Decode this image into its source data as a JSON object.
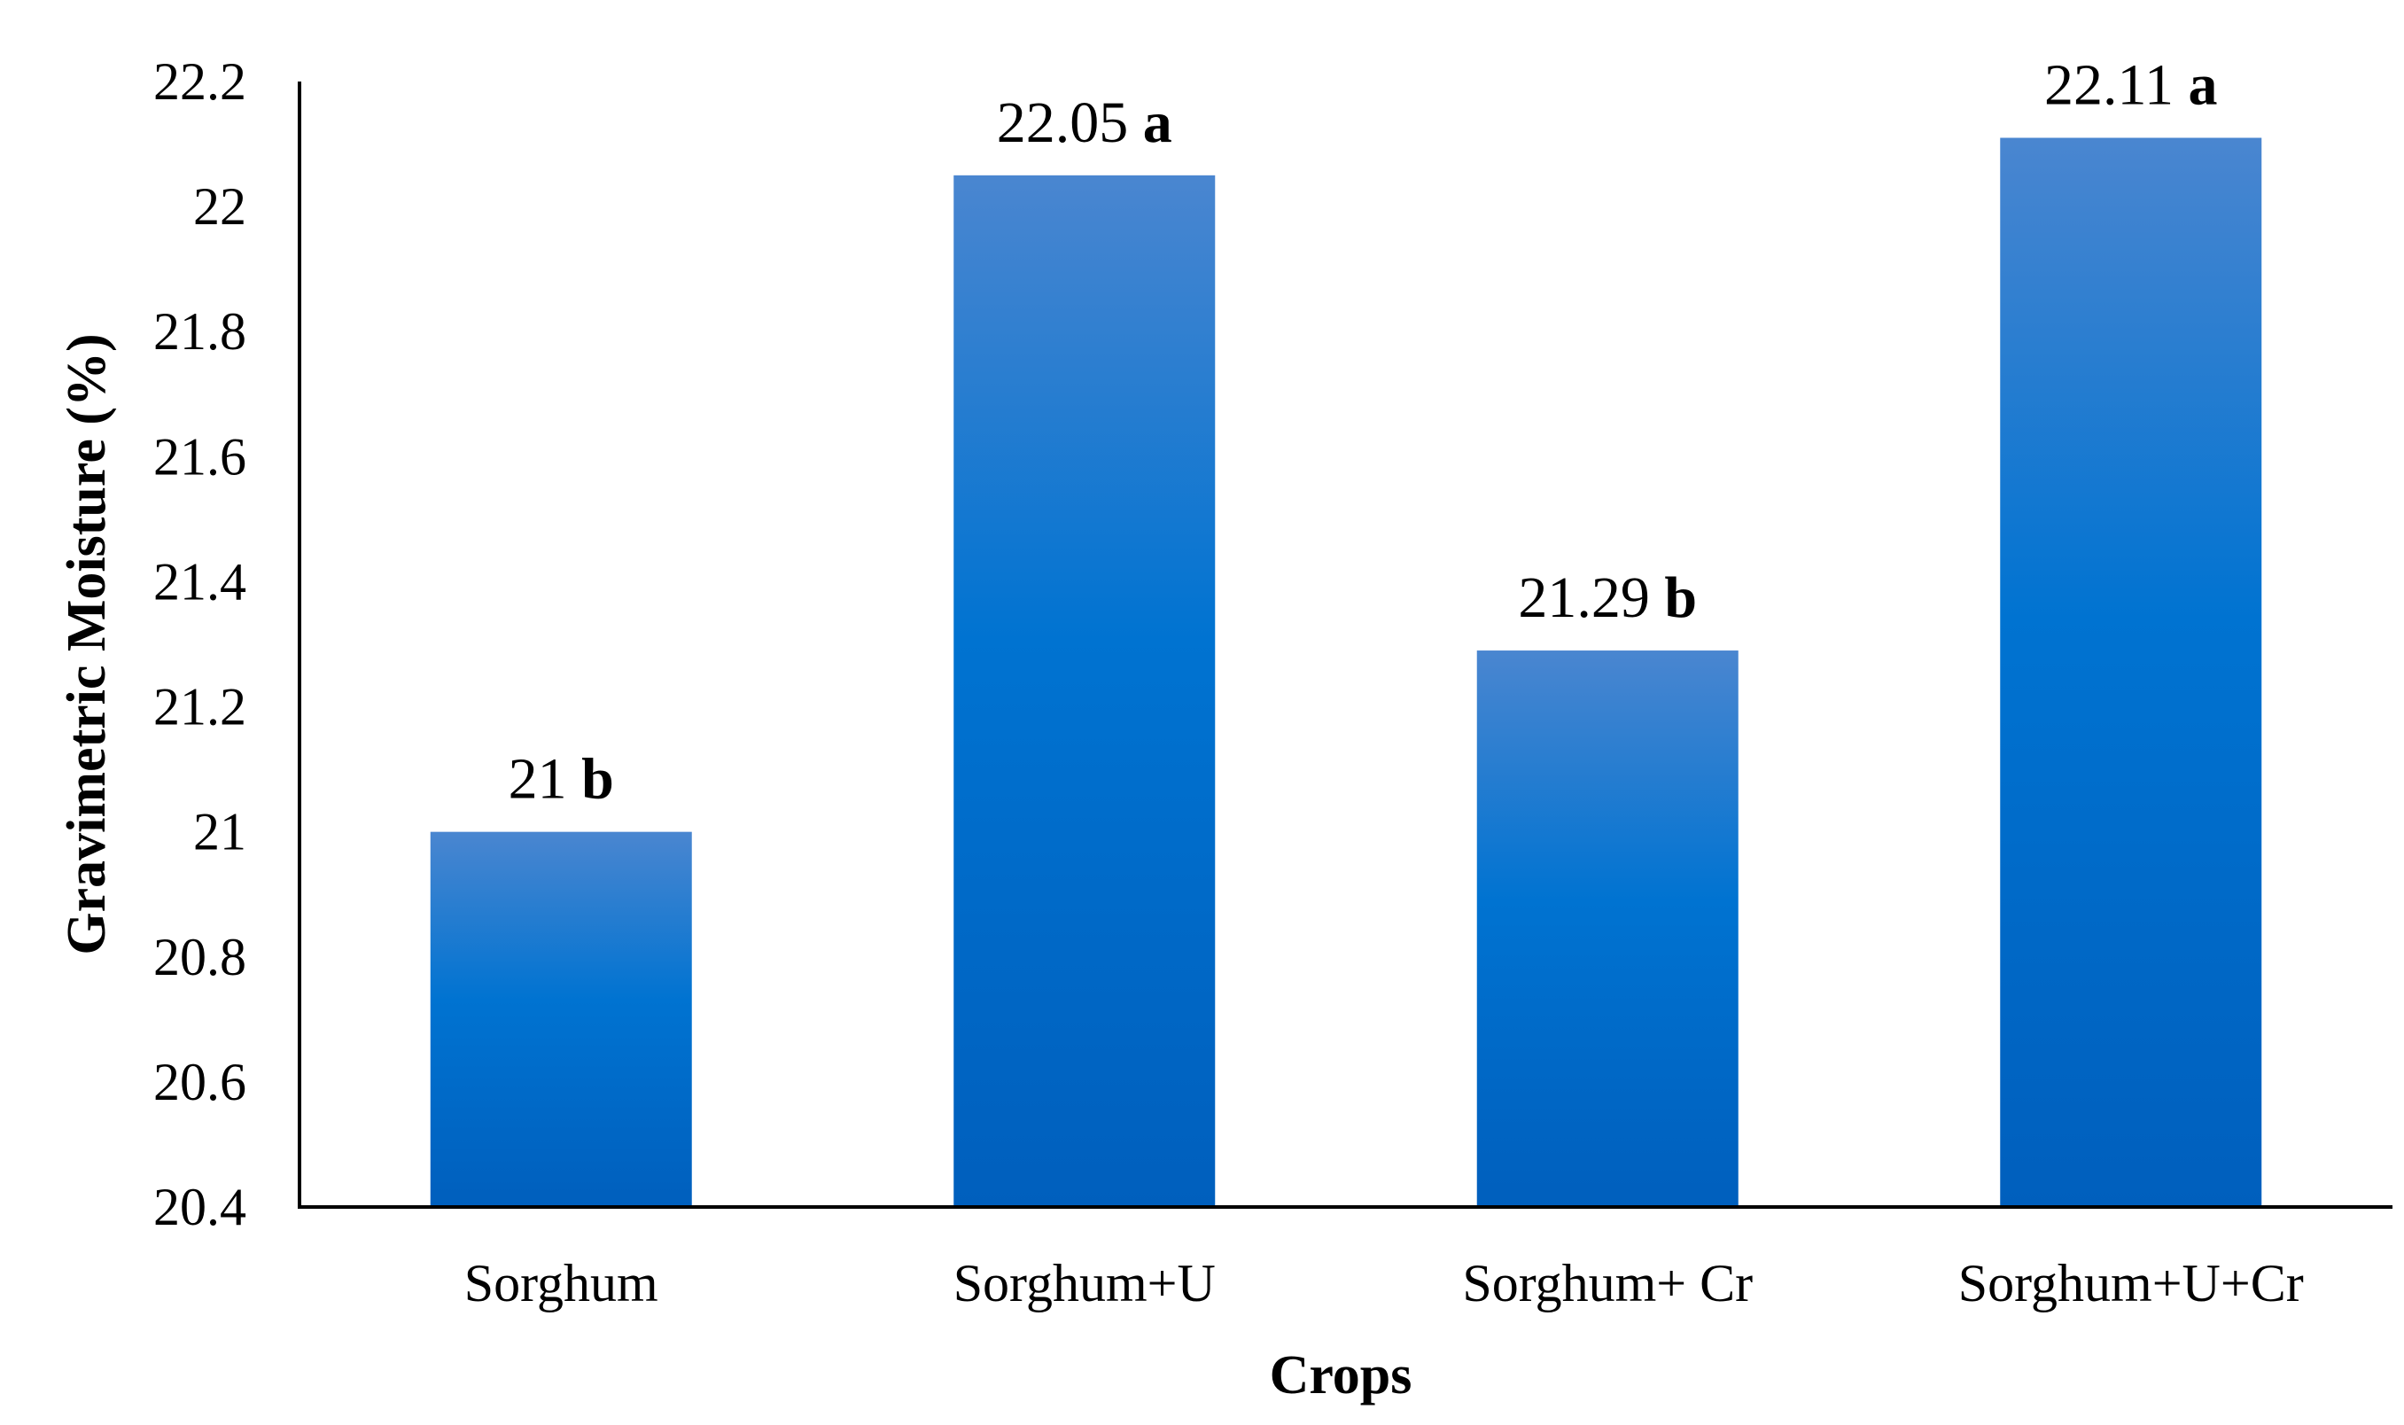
{
  "chart_data": {
    "type": "bar",
    "title": "",
    "xlabel": "Crops",
    "ylabel": "Gravimetric Moisture (%)",
    "categories": [
      "Sorghum",
      "Sorghum+U",
      "Sorghum+ Cr",
      "Sorghum+U+Cr"
    ],
    "values": [
      21,
      22.05,
      21.29,
      22.11
    ],
    "value_labels": [
      "21",
      "22.05",
      "21.29",
      "22.11"
    ],
    "significance_letters": [
      "b",
      "a",
      "b",
      "a"
    ],
    "ylim": [
      20.4,
      22.2
    ],
    "yticks": [
      "20.4",
      "20.6",
      "20.8",
      "21",
      "21.2",
      "21.4",
      "21.6",
      "21.8",
      "22",
      "22.2"
    ],
    "grid": false,
    "legend": "none",
    "colors": {
      "bar_top": "#4a86d0",
      "bar_mid": "#0073d1",
      "bar_bottom": "#005fbd",
      "axis": "#000000"
    }
  }
}
